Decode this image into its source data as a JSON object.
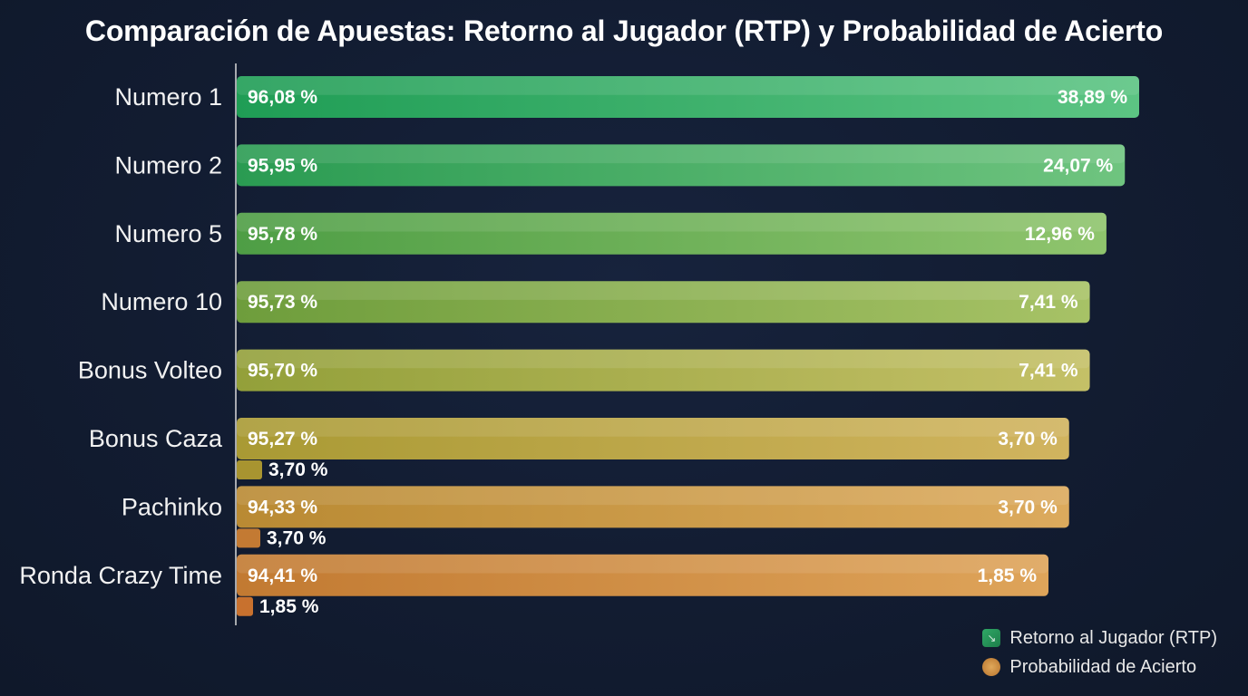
{
  "colors": {
    "background": "#121c31",
    "rtp_start": "#1fa35a",
    "prob_end": "#c98a3e"
  },
  "chart_data": {
    "type": "bar",
    "title": "Comparación de Apuestas: Retorno al Jugador (RTP) y Probabilidad de Acierto",
    "categories": [
      "Numero 1",
      "Numero 2",
      "Numero 5",
      "Numero 10",
      "Bonus Volteo",
      "Bonus Caza",
      "Pachinko",
      "Ronda Crazy Time"
    ],
    "series": [
      {
        "name": "Retorno al Jugador (RTP)",
        "values": [
          96.08,
          95.95,
          95.78,
          95.73,
          95.7,
          95.27,
          94.33,
          94.41
        ],
        "labels": [
          "96,08 %",
          "95,95 %",
          "95,78 %",
          "95,73 %",
          "95,70 %",
          "95,27 %",
          "94,33 %",
          "94,41 %"
        ]
      },
      {
        "name": "Probabilidad de Acierto",
        "values": [
          38.89,
          24.07,
          12.96,
          7.41,
          7.41,
          3.7,
          3.7,
          1.85
        ],
        "labels": [
          "38,89 %",
          "24,07 %",
          "12,96 %",
          "7,41 %",
          "7,41 %",
          "3,70 %",
          "3,70 %",
          "1,85 %"
        ]
      }
    ],
    "extra_labels": [
      "3,70 %",
      "3,70 %",
      "1,85 %"
    ],
    "legend_position": "bottom-right",
    "grid": false
  }
}
